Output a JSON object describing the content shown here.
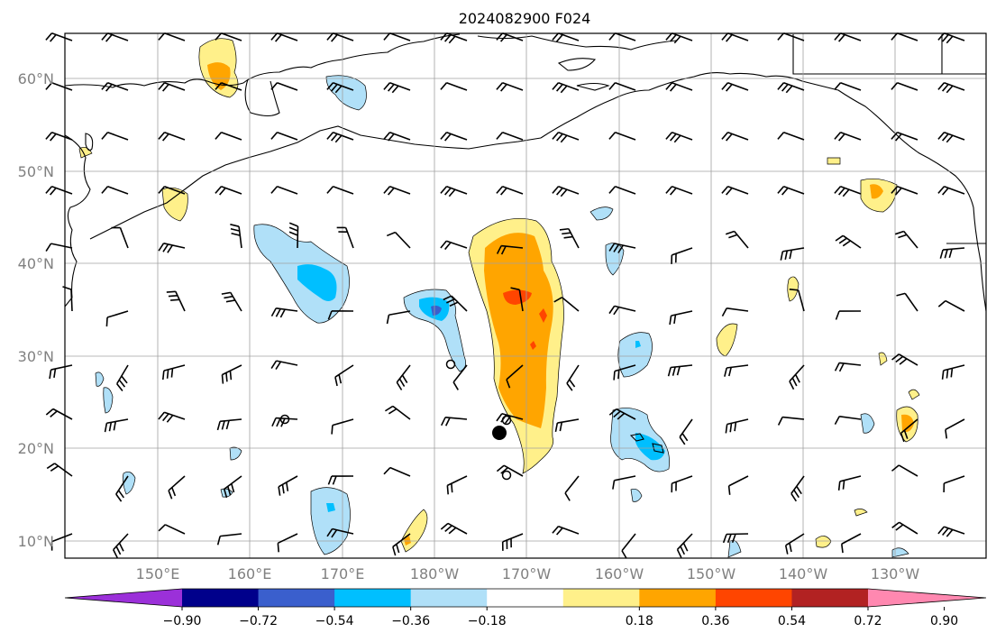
{
  "title": "2024082900 F024",
  "lat_labels": [
    "60°N",
    "50°N",
    "40°N",
    "30°N",
    "20°N",
    "10°N"
  ],
  "lon_labels": [
    "150°E",
    "160°E",
    "170°E",
    "180°W",
    "170°W",
    "160°W",
    "150°W",
    "140°W",
    "130°W"
  ],
  "colorbar": {
    "colors": [
      "#9b30d9",
      "#00008b",
      "#3a5fcd",
      "#00bfff",
      "#b0e0f8",
      "#ffffff",
      "#fff08a",
      "#ffa500",
      "#ff4500",
      "#b22222",
      "#ff88b0"
    ],
    "ticks": [
      "−0.90",
      "−0.72",
      "−0.54",
      "−0.36",
      "−0.18",
      "0.18",
      "0.36",
      "0.54",
      "0.72",
      "0.90"
    ]
  },
  "features": {
    "hurricane_marker": "filled-circle",
    "markers": [
      "open-circle",
      "open-circle",
      "open-circle",
      "open-circle"
    ]
  }
}
